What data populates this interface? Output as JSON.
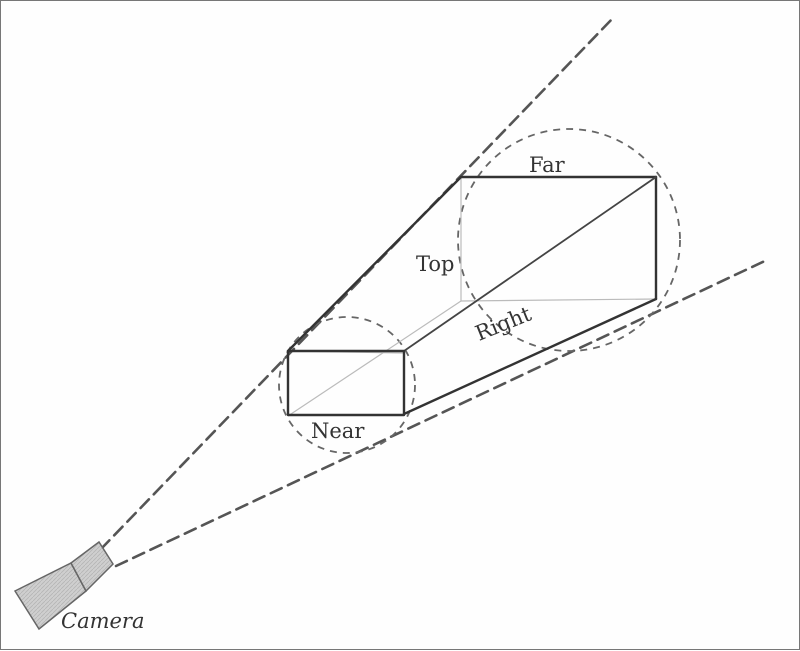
{
  "labels": {
    "far": "Far",
    "top": "Top",
    "right": "Right",
    "near": "Near",
    "camera": "Camera"
  },
  "colors": {
    "ink": "#333333",
    "camera_fill": "#c8c8c8",
    "hidden_edge": "#bbbbbb"
  }
}
